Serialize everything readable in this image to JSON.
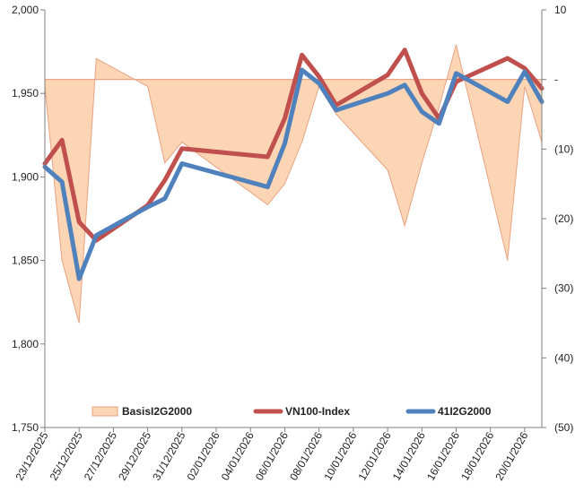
{
  "chart_data": {
    "type": "line",
    "title": "",
    "categories": [
      "23/12/2025",
      "24/12/2025",
      "25/12/2025",
      "26/12/2025",
      "29/12/2025",
      "30/12/2025",
      "31/12/2025",
      "05/01/2026",
      "06/01/2026",
      "07/01/2026",
      "08/01/2026",
      "09/01/2026",
      "12/01/2026",
      "13/01/2026",
      "14/01/2026",
      "15/01/2026",
      "16/01/2026",
      "19/01/2026",
      "20/01/2026",
      "21/01/2026"
    ],
    "x_tick_labels": [
      "23/12/2025",
      "25/12/2025",
      "27/12/2025",
      "29/12/2025",
      "31/12/2025",
      "02/01/2026",
      "04/01/2026",
      "06/01/2026",
      "08/01/2026",
      "10/01/2026",
      "12/01/2026",
      "14/01/2026",
      "16/01/2026",
      "18/01/2026",
      "20/01/2026"
    ],
    "x_start": "2025-12-23",
    "x_end": "2026-01-21",
    "series": [
      {
        "name": "VN100-Index",
        "axis": "left",
        "kind": "line",
        "color": "#c0504d",
        "points": [
          [
            "2025-12-23",
            1908
          ],
          [
            "2025-12-24",
            1922
          ],
          [
            "2025-12-25",
            1873
          ],
          [
            "2025-12-26",
            1862
          ],
          [
            "2025-12-29",
            1883
          ],
          [
            "2025-12-30",
            1898
          ],
          [
            "2025-12-31",
            1917
          ],
          [
            "2026-01-05",
            1912
          ],
          [
            "2026-01-06",
            1935
          ],
          [
            "2026-01-07",
            1973
          ],
          [
            "2026-01-08",
            1960
          ],
          [
            "2026-01-09",
            1943
          ],
          [
            "2026-01-12",
            1961
          ],
          [
            "2026-01-13",
            1976
          ],
          [
            "2026-01-14",
            1950
          ],
          [
            "2026-01-15",
            1935
          ],
          [
            "2026-01-16",
            1957
          ],
          [
            "2026-01-19",
            1971
          ],
          [
            "2026-01-20",
            1965
          ],
          [
            "2026-01-21",
            1953
          ]
        ]
      },
      {
        "name": "41I2G2000",
        "axis": "left",
        "kind": "line",
        "color": "#4f81bd",
        "points": [
          [
            "2025-12-23",
            1906
          ],
          [
            "2025-12-24",
            1897
          ],
          [
            "2025-12-25",
            1839
          ],
          [
            "2025-12-26",
            1865
          ],
          [
            "2025-12-29",
            1882
          ],
          [
            "2025-12-30",
            1887
          ],
          [
            "2025-12-31",
            1908
          ],
          [
            "2026-01-05",
            1894
          ],
          [
            "2026-01-06",
            1920
          ],
          [
            "2026-01-07",
            1964
          ],
          [
            "2026-01-08",
            1956
          ],
          [
            "2026-01-09",
            1940
          ],
          [
            "2026-01-12",
            1950
          ],
          [
            "2026-01-13",
            1955
          ],
          [
            "2026-01-14",
            1939
          ],
          [
            "2026-01-15",
            1932
          ],
          [
            "2026-01-16",
            1962
          ],
          [
            "2026-01-19",
            1945
          ],
          [
            "2026-01-20",
            1963
          ],
          [
            "2026-01-21",
            1945
          ]
        ]
      },
      {
        "name": "BasisI2G2000",
        "axis": "right",
        "kind": "area",
        "color": "#fcd5b5",
        "edge_color": "#e6a384",
        "points": [
          [
            "2025-12-23",
            -1
          ],
          [
            "2025-12-24",
            -26
          ],
          [
            "2025-12-25",
            -35
          ],
          [
            "2025-12-26",
            3
          ],
          [
            "2025-12-29",
            -1
          ],
          [
            "2025-12-30",
            -12
          ],
          [
            "2025-12-31",
            -9
          ],
          [
            "2026-01-05",
            -18
          ],
          [
            "2026-01-06",
            -15
          ],
          [
            "2026-01-07",
            -9
          ],
          [
            "2026-01-08",
            -1
          ],
          [
            "2026-01-09",
            -5
          ],
          [
            "2026-01-12",
            -13
          ],
          [
            "2026-01-13",
            -21
          ],
          [
            "2026-01-14",
            -12
          ],
          [
            "2026-01-15",
            -4
          ],
          [
            "2026-01-16",
            5
          ],
          [
            "2026-01-19",
            -26
          ],
          [
            "2026-01-20",
            -1
          ],
          [
            "2026-01-21",
            -9
          ]
        ]
      }
    ],
    "y_left": {
      "min": 1750,
      "max": 2000,
      "ticks": [
        1750,
        1800,
        1850,
        1900,
        1950,
        2000
      ],
      "tick_labels": [
        "1,750",
        "1,800",
        "1,850",
        "1,900",
        "1,950",
        "2,000"
      ]
    },
    "y_right": {
      "min": -50,
      "max": 10,
      "ticks": [
        10,
        0,
        -10,
        -20,
        -30,
        -40,
        -50
      ],
      "tick_labels": [
        "10",
        "-",
        "(10)",
        "(20)",
        "(30)",
        "(40)",
        "(50)"
      ]
    },
    "legend": {
      "position": "bottom-inside",
      "items": [
        {
          "label": "BasisI2G2000",
          "marker": "box",
          "color": "#fcd5b5"
        },
        {
          "label": "VN100-Index",
          "marker": "line",
          "color": "#c0504d"
        },
        {
          "label": "41I2G2000",
          "marker": "line",
          "color": "#4f81bd"
        }
      ]
    },
    "grid": false,
    "xlabel": "",
    "ylabel": ""
  }
}
